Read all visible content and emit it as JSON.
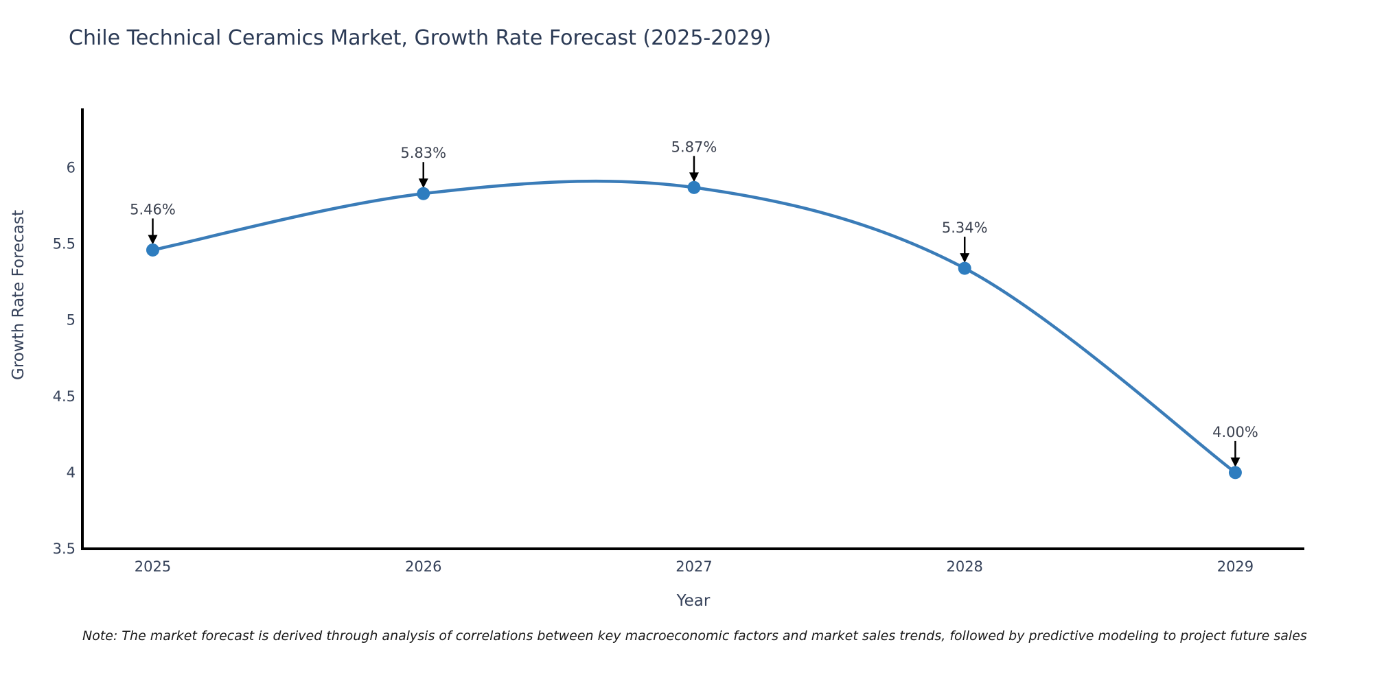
{
  "chart_data": {
    "type": "line",
    "title": "Chile Technical Ceramics Market, Growth Rate Forecast (2025-2029)",
    "xlabel": "Year",
    "ylabel": "Growth Rate Forecast",
    "x": [
      2025,
      2026,
      2027,
      2028,
      2029
    ],
    "values": [
      5.46,
      5.83,
      5.87,
      5.34,
      4.0
    ],
    "point_labels": [
      "5.46%",
      "5.83%",
      "5.87%",
      "5.34%",
      "4.00%"
    ],
    "series_name": "Growth Rate Forecast",
    "xtick_labels": [
      "2025",
      "2026",
      "2027",
      "2028",
      "2029"
    ],
    "xtick_values": [
      2025,
      2026,
      2027,
      2028,
      2029
    ],
    "ytick_labels": [
      "3.5",
      "4",
      "4.5",
      "5",
      "5.5",
      "6"
    ],
    "ytick_values": [
      3.5,
      4,
      4.5,
      5,
      5.5,
      6
    ],
    "xlim": [
      2024.74,
      2029.25
    ],
    "ylim": [
      3.5,
      6.38
    ],
    "grid": false,
    "legend": "none",
    "line_color": "#3a7cb8",
    "marker_color": "#2e7dbf",
    "axis_color": "#000000",
    "arrow_color": "#000000",
    "tick_label_color": "#36425a",
    "point_label_color": "#3c4250",
    "note": "Note: The market forecast is derived through analysis of correlations between key macroeconomic factors and market sales trends, followed by predictive modeling to project future sales"
  }
}
